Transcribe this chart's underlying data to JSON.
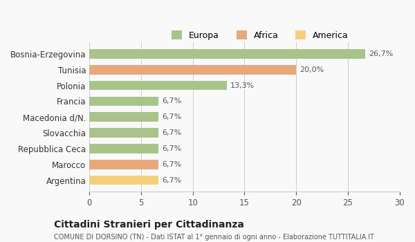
{
  "categories": [
    "Bosnia-Erzegovina",
    "Tunisia",
    "Polonia",
    "Francia",
    "Macedonia d/N.",
    "Slovacchia",
    "Repubblica Ceca",
    "Marocco",
    "Argentina"
  ],
  "values": [
    26.7,
    20.0,
    13.3,
    6.7,
    6.7,
    6.7,
    6.7,
    6.7,
    6.7
  ],
  "labels": [
    "26,7%",
    "20,0%",
    "13,3%",
    "6,7%",
    "6,7%",
    "6,7%",
    "6,7%",
    "6,7%",
    "6,7%"
  ],
  "bar_colors": [
    "#a8c48a",
    "#e8a87c",
    "#a8c48a",
    "#a8c48a",
    "#a8c48a",
    "#a8c48a",
    "#a8c48a",
    "#e8a87c",
    "#f5d07a"
  ],
  "legend_labels": [
    "Europa",
    "Africa",
    "America"
  ],
  "legend_colors": [
    "#a8c48a",
    "#e8a87c",
    "#f5d07a"
  ],
  "xlim": [
    0,
    30
  ],
  "xticks": [
    0,
    5,
    10,
    15,
    20,
    25,
    30
  ],
  "title": "Cittadini Stranieri per Cittadinanza",
  "subtitle": "COMUNE DI DORSINO (TN) - Dati ISTAT al 1° gennaio di ogni anno - Elaborazione TUTTITALIA.IT",
  "background_color": "#f9f9f9",
  "grid_color": "#cccccc"
}
